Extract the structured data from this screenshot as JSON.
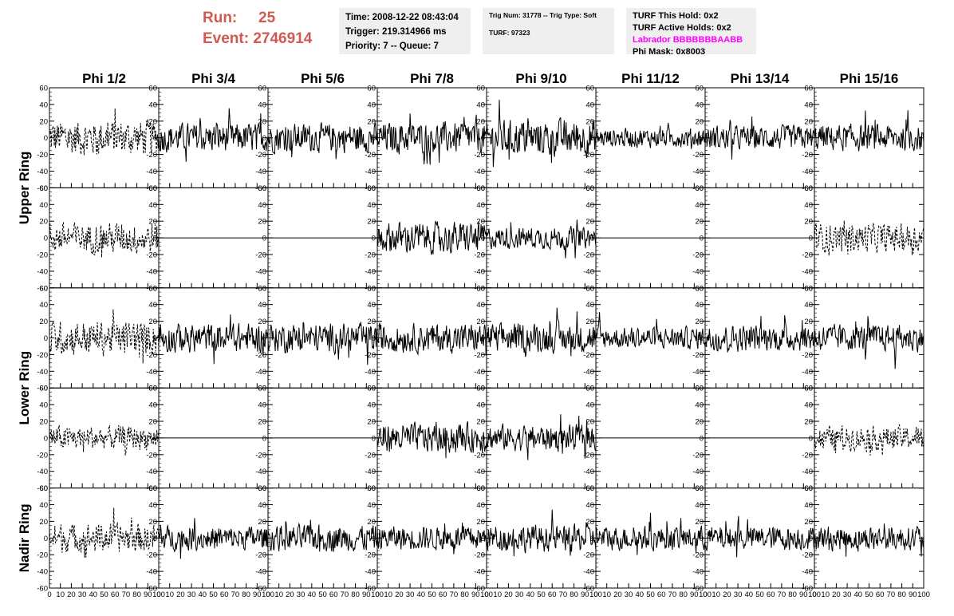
{
  "header": {
    "run_label": "Run:",
    "run_value": "25",
    "event_label": "Event:",
    "event_value": "2746914",
    "time_line": "Time: 2008-12-22 08:43:04",
    "trigger_line": "Trigger: 219.314966 ms",
    "priority_line": "Priority: 7 -- Queue: 7",
    "trig_num_line": "Trig Num: 31778 -- Trig Type: Soft",
    "turf_line": "TURF: 97323",
    "turf_hold_line": "TURF This Hold: 0x2",
    "turf_active_line": "TURF Active Holds: 0x2",
    "labrador_line": "Labrador BBBBBBBAABB",
    "phi_mask_line": "Phi Mask: 0x8003",
    "labrador_color": "#ff00ff",
    "run_color": "#d05a50"
  },
  "chart_data": {
    "type": "line",
    "grid": false,
    "columns": [
      "Phi 1/2",
      "Phi 3/4",
      "Phi 5/6",
      "Phi 7/8",
      "Phi 9/10",
      "Phi 11/12",
      "Phi 13/14",
      "Phi 15/16"
    ],
    "row_labels": [
      "Upper Ring",
      "Lower Ring",
      "Nadir Ring"
    ],
    "xlim": [
      0,
      100
    ],
    "ylim": [
      -60,
      60
    ],
    "x_ticks": [
      "0",
      "10",
      "20",
      "30",
      "40",
      "50",
      "60",
      "70",
      "80",
      "90",
      "100"
    ],
    "y_ticks": [
      "60",
      "40",
      "20",
      "0",
      "-20",
      "-40",
      "-60"
    ],
    "approx_amplitude": [
      [
        15,
        12,
        12,
        13,
        15,
        8,
        10,
        11
      ],
      [
        13,
        0,
        0,
        13,
        9,
        0,
        0,
        12
      ],
      [
        14,
        12,
        12,
        12,
        12,
        9,
        11,
        11
      ],
      [
        10,
        0,
        0,
        12,
        11,
        0,
        0,
        10
      ],
      [
        12,
        10,
        11,
        10,
        11,
        10,
        10,
        10
      ]
    ],
    "dashed": [
      [
        true,
        false,
        false,
        false,
        false,
        false,
        false,
        false
      ],
      [
        true,
        false,
        false,
        false,
        false,
        false,
        false,
        true
      ],
      [
        true,
        false,
        false,
        false,
        false,
        false,
        false,
        false
      ],
      [
        true,
        false,
        false,
        false,
        false,
        false,
        false,
        true
      ],
      [
        true,
        false,
        false,
        false,
        false,
        false,
        false,
        false
      ]
    ]
  }
}
